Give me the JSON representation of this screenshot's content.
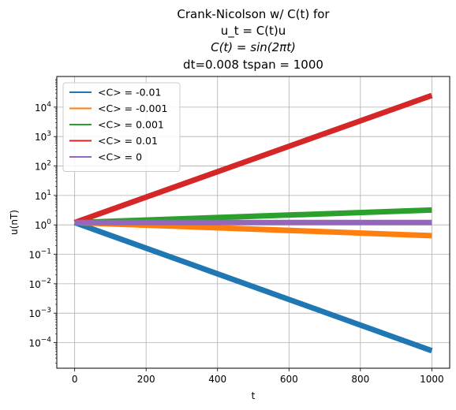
{
  "chart_data": {
    "type": "line",
    "title_lines": [
      "Crank-Nicolson w/ C(t) for",
      "u_t = C(t)u",
      "C(t) = sin(2πt)",
      "dt=0.008 tspan = 1000"
    ],
    "xlabel": "t",
    "ylabel": "u(nT)",
    "xlim": [
      -50,
      1050
    ],
    "ylim": [
      1.35e-05,
      110000
    ],
    "y_scale": "log",
    "grid": true,
    "legend_placement": "top-left",
    "x_ticks": [
      {
        "value": 0,
        "label": "0"
      },
      {
        "value": 200,
        "label": "200"
      },
      {
        "value": 400,
        "label": "400"
      },
      {
        "value": 600,
        "label": "600"
      },
      {
        "value": 800,
        "label": "800"
      },
      {
        "value": 1000,
        "label": "1000"
      }
    ],
    "y_ticks": [
      {
        "value": 0.0001,
        "base": "10",
        "exp": "−4"
      },
      {
        "value": 0.001,
        "base": "10",
        "exp": "−3"
      },
      {
        "value": 0.01,
        "base": "10",
        "exp": "−2"
      },
      {
        "value": 0.1,
        "base": "10",
        "exp": "−1"
      },
      {
        "value": 1,
        "base": "10",
        "exp": "0"
      },
      {
        "value": 10,
        "base": "10",
        "exp": "1"
      },
      {
        "value": 100,
        "base": "10",
        "exp": "2"
      },
      {
        "value": 1000,
        "base": "10",
        "exp": "3"
      },
      {
        "value": 10000,
        "base": "10",
        "exp": "4"
      }
    ],
    "series": [
      {
        "name": "<C> = -0.01",
        "color": "#1f77b4",
        "x": [
          0,
          1000
        ],
        "y": [
          1.2,
          5.3e-05
        ],
        "band_width": 7
      },
      {
        "name": "<C> = -0.001",
        "color": "#ff7f0e",
        "x": [
          0,
          1000
        ],
        "y": [
          1.2,
          0.43
        ],
        "band_width": 7
      },
      {
        "name": "<C> = 0.001",
        "color": "#2ca02c",
        "x": [
          0,
          1000
        ],
        "y": [
          1.2,
          3.2
        ],
        "band_width": 7
      },
      {
        "name": "<C> = 0.01",
        "color": "#d62728",
        "x": [
          0,
          1000
        ],
        "y": [
          1.2,
          25000
        ],
        "band_width": 7
      },
      {
        "name": "<C> = 0",
        "color": "#9467bd",
        "x": [
          0,
          1000
        ],
        "y": [
          1.2,
          1.2
        ],
        "band_width": 7
      }
    ]
  }
}
